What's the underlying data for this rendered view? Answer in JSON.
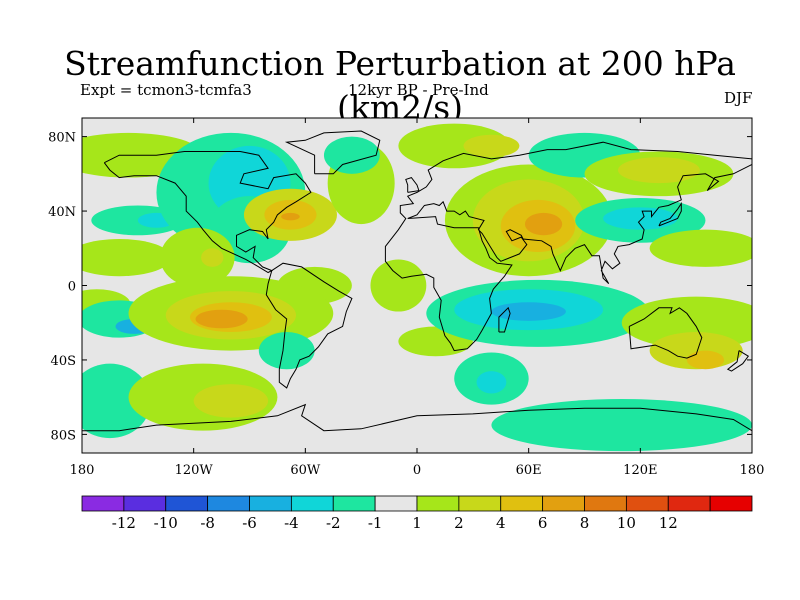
{
  "title": "Streamfunction Perturbation at 200 hPa (km2/s)",
  "experiment": "Expt = tcmon3-tcmfa3",
  "period": "12kyr BP - Pre-Ind",
  "season": "DJF",
  "map": {
    "projection": "cylindrical-equidistant",
    "lon_range": [
      -180,
      180
    ],
    "lat_range": [
      -90,
      90
    ],
    "background_color": "#e6e6e6",
    "lat_ticks": [
      {
        "value": 80,
        "label": "80N"
      },
      {
        "value": 40,
        "label": "40N"
      },
      {
        "value": 0,
        "label": "0"
      },
      {
        "value": -40,
        "label": "40S"
      },
      {
        "value": -80,
        "label": "80S"
      }
    ],
    "lon_ticks": [
      {
        "value": -180,
        "label": "180"
      },
      {
        "value": -120,
        "label": "120W"
      },
      {
        "value": -60,
        "label": "60W"
      },
      {
        "value": 0,
        "label": "0"
      },
      {
        "value": 60,
        "label": "60E"
      },
      {
        "value": 120,
        "label": "120E"
      },
      {
        "value": 180,
        "label": "180"
      }
    ]
  },
  "colorbar": {
    "colors": [
      "#8a2be2",
      "#5a2ee0",
      "#1f55d6",
      "#1e88e0",
      "#18b0e0",
      "#10d6d8",
      "#1ee6a0",
      "#e6e6e6",
      "#a6e61a",
      "#c8d81a",
      "#e0c010",
      "#e2a010",
      "#e07810",
      "#e05010",
      "#e02810",
      "#e60000"
    ],
    "labels": [
      "-12",
      "-10",
      "-8",
      "-6",
      "-4",
      "-2",
      "-1",
      "1",
      "2",
      "4",
      "6",
      "8",
      "10",
      "12"
    ]
  },
  "field_anomalies": [
    {
      "lon": -172,
      "lat": -10,
      "rx": 18,
      "ry": 8,
      "level": 1
    },
    {
      "lon": -160,
      "lat": -18,
      "rx": 22,
      "ry": 10,
      "level": -1
    },
    {
      "lon": -152,
      "lat": -22,
      "rx": 10,
      "ry": 4,
      "level": -4
    },
    {
      "lon": -165,
      "lat": -62,
      "rx": 22,
      "ry": 20,
      "level": -1
    },
    {
      "lon": -150,
      "lat": 35,
      "rx": 25,
      "ry": 8,
      "level": -1
    },
    {
      "lon": -140,
      "lat": 35,
      "rx": 10,
      "ry": 4,
      "level": -2
    },
    {
      "lon": -160,
      "lat": 15,
      "rx": 28,
      "ry": 10,
      "level": 1
    },
    {
      "lon": -155,
      "lat": 70,
      "rx": 40,
      "ry": 12,
      "level": 1
    },
    {
      "lon": -100,
      "lat": 50,
      "rx": 40,
      "ry": 32,
      "level": -1
    },
    {
      "lon": -90,
      "lat": 55,
      "rx": 22,
      "ry": 20,
      "level": -2
    },
    {
      "lon": -90,
      "lat": 30,
      "rx": 22,
      "ry": 18,
      "level": -1
    },
    {
      "lon": -68,
      "lat": 38,
      "rx": 25,
      "ry": 14,
      "level": 2
    },
    {
      "lon": -68,
      "lat": 38,
      "rx": 14,
      "ry": 8,
      "level": 4
    },
    {
      "lon": -68,
      "lat": 37,
      "rx": 5,
      "ry": 2,
      "level": 6
    },
    {
      "lon": -118,
      "lat": 15,
      "rx": 20,
      "ry": 16,
      "level": 1
    },
    {
      "lon": -110,
      "lat": 15,
      "rx": 6,
      "ry": 5,
      "level": 2
    },
    {
      "lon": -55,
      "lat": 0,
      "rx": 20,
      "ry": 10,
      "level": 1
    },
    {
      "lon": -100,
      "lat": -15,
      "rx": 55,
      "ry": 20,
      "level": 1
    },
    {
      "lon": -100,
      "lat": -16,
      "rx": 35,
      "ry": 13,
      "level": 2
    },
    {
      "lon": -100,
      "lat": -17,
      "rx": 22,
      "ry": 8,
      "level": 4
    },
    {
      "lon": -105,
      "lat": -18,
      "rx": 14,
      "ry": 5,
      "level": 6
    },
    {
      "lon": -70,
      "lat": -35,
      "rx": 15,
      "ry": 10,
      "level": -1
    },
    {
      "lon": -115,
      "lat": -60,
      "rx": 40,
      "ry": 18,
      "level": 1
    },
    {
      "lon": -100,
      "lat": -62,
      "rx": 20,
      "ry": 9,
      "level": 2
    },
    {
      "lon": -30,
      "lat": 55,
      "rx": 18,
      "ry": 22,
      "level": 1
    },
    {
      "lon": -35,
      "lat": 70,
      "rx": 15,
      "ry": 10,
      "level": -1
    },
    {
      "lon": -10,
      "lat": 0,
      "rx": 15,
      "ry": 14,
      "level": 1
    },
    {
      "lon": 10,
      "lat": -30,
      "rx": 20,
      "ry": 8,
      "level": 1
    },
    {
      "lon": 40,
      "lat": -50,
      "rx": 20,
      "ry": 14,
      "level": -1
    },
    {
      "lon": 40,
      "lat": -52,
      "rx": 8,
      "ry": 6,
      "level": -2
    },
    {
      "lon": 20,
      "lat": 75,
      "rx": 30,
      "ry": 12,
      "level": 1
    },
    {
      "lon": 40,
      "lat": 75,
      "rx": 15,
      "ry": 6,
      "level": 2
    },
    {
      "lon": 60,
      "lat": 35,
      "rx": 45,
      "ry": 30,
      "level": 1
    },
    {
      "lon": 60,
      "lat": 35,
      "rx": 30,
      "ry": 22,
      "level": 2
    },
    {
      "lon": 65,
      "lat": 32,
      "rx": 20,
      "ry": 14,
      "level": 4
    },
    {
      "lon": 68,
      "lat": 33,
      "rx": 10,
      "ry": 6,
      "level": 6
    },
    {
      "lon": 90,
      "lat": 70,
      "rx": 30,
      "ry": 12,
      "level": -1
    },
    {
      "lon": 130,
      "lat": 60,
      "rx": 40,
      "ry": 12,
      "level": 1
    },
    {
      "lon": 130,
      "lat": 62,
      "rx": 22,
      "ry": 7,
      "level": 2
    },
    {
      "lon": 120,
      "lat": 35,
      "rx": 35,
      "ry": 12,
      "level": -1
    },
    {
      "lon": 120,
      "lat": 36,
      "rx": 20,
      "ry": 6,
      "level": -2
    },
    {
      "lon": 65,
      "lat": -15,
      "rx": 60,
      "ry": 18,
      "level": -1
    },
    {
      "lon": 60,
      "lat": -13,
      "rx": 40,
      "ry": 11,
      "level": -2
    },
    {
      "lon": 60,
      "lat": -14,
      "rx": 20,
      "ry": 5,
      "level": -4
    },
    {
      "lon": 150,
      "lat": -20,
      "rx": 40,
      "ry": 14,
      "level": 1
    },
    {
      "lon": 155,
      "lat": 20,
      "rx": 30,
      "ry": 10,
      "level": 1
    },
    {
      "lon": 150,
      "lat": -35,
      "rx": 25,
      "ry": 10,
      "level": 2
    },
    {
      "lon": 155,
      "lat": -40,
      "rx": 10,
      "ry": 5,
      "level": 4
    },
    {
      "lon": 110,
      "lat": -75,
      "rx": 70,
      "ry": 14,
      "level": -1
    }
  ],
  "coastlines": [
    {
      "name": "north-america",
      "points": [
        [
          -168,
          66
        ],
        [
          -160,
          70
        ],
        [
          -140,
          70
        ],
        [
          -125,
          72
        ],
        [
          -95,
          72
        ],
        [
          -85,
          70
        ],
        [
          -80,
          63
        ],
        [
          -93,
          60
        ],
        [
          -95,
          55
        ],
        [
          -80,
          52
        ],
        [
          -77,
          58
        ],
        [
          -65,
          60
        ],
        [
          -60,
          55
        ],
        [
          -57,
          50
        ],
        [
          -65,
          45
        ],
        [
          -70,
          42
        ],
        [
          -75,
          38
        ],
        [
          -77,
          34
        ],
        [
          -81,
          30
        ],
        [
          -80,
          25
        ],
        [
          -83,
          29
        ],
        [
          -90,
          30
        ],
        [
          -97,
          27
        ],
        [
          -97,
          21
        ],
        [
          -92,
          18
        ],
        [
          -87,
          21
        ],
        [
          -88,
          15
        ],
        [
          -83,
          10
        ],
        [
          -78,
          8
        ],
        [
          -80,
          7
        ],
        [
          -85,
          10
        ],
        [
          -92,
          14
        ],
        [
          -105,
          20
        ],
        [
          -110,
          24
        ],
        [
          -115,
          30
        ],
        [
          -118,
          34
        ],
        [
          -124,
          40
        ],
        [
          -124,
          48
        ],
        [
          -130,
          55
        ],
        [
          -140,
          59
        ],
        [
          -152,
          59
        ],
        [
          -160,
          58
        ],
        [
          -165,
          62
        ],
        [
          -168,
          66
        ]
      ]
    },
    {
      "name": "greenland",
      "points": [
        [
          -55,
          60
        ],
        [
          -45,
          60
        ],
        [
          -40,
          65
        ],
        [
          -22,
          70
        ],
        [
          -20,
          78
        ],
        [
          -30,
          83
        ],
        [
          -50,
          82
        ],
        [
          -60,
          78
        ],
        [
          -70,
          77
        ],
        [
          -55,
          70
        ],
        [
          -55,
          60
        ]
      ]
    },
    {
      "name": "south-america",
      "points": [
        [
          -78,
          8
        ],
        [
          -72,
          12
        ],
        [
          -62,
          10
        ],
        [
          -50,
          2
        ],
        [
          -42,
          -3
        ],
        [
          -35,
          -7
        ],
        [
          -38,
          -14
        ],
        [
          -40,
          -22
        ],
        [
          -48,
          -26
        ],
        [
          -53,
          -33
        ],
        [
          -58,
          -38
        ],
        [
          -63,
          -40
        ],
        [
          -65,
          -45
        ],
        [
          -68,
          -50
        ],
        [
          -70,
          -55
        ],
        [
          -74,
          -52
        ],
        [
          -74,
          -45
        ],
        [
          -72,
          -35
        ],
        [
          -71,
          -25
        ],
        [
          -70,
          -18
        ],
        [
          -76,
          -13
        ],
        [
          -81,
          -5
        ],
        [
          -80,
          1
        ],
        [
          -78,
          8
        ]
      ]
    },
    {
      "name": "africa-eurasia",
      "points": [
        [
          -17,
          15
        ],
        [
          -17,
          21
        ],
        [
          -10,
          30
        ],
        [
          -6,
          36
        ],
        [
          -9,
          39
        ],
        [
          -9,
          43
        ],
        [
          -2,
          44
        ],
        [
          -5,
          48
        ],
        [
          0,
          50
        ],
        [
          5,
          53
        ],
        [
          8,
          57
        ],
        [
          6,
          62
        ],
        [
          14,
          67
        ],
        [
          25,
          71
        ],
        [
          40,
          68
        ],
        [
          55,
          70
        ],
        [
          70,
          73
        ],
        [
          80,
          73
        ],
        [
          100,
          77
        ],
        [
          115,
          73
        ],
        [
          140,
          72
        ],
        [
          160,
          70
        ],
        [
          180,
          68
        ],
        [
          180,
          65
        ],
        [
          170,
          60
        ],
        [
          160,
          58
        ],
        [
          156,
          51
        ],
        [
          162,
          56
        ],
        [
          155,
          60
        ],
        [
          143,
          59
        ],
        [
          140,
          53
        ],
        [
          142,
          46
        ],
        [
          135,
          43
        ],
        [
          130,
          42
        ],
        [
          126,
          37
        ],
        [
          126,
          40
        ],
        [
          121,
          40
        ],
        [
          122,
          37
        ],
        [
          119,
          34
        ],
        [
          122,
          30
        ],
        [
          121,
          25
        ],
        [
          114,
          22
        ],
        [
          108,
          21
        ],
        [
          106,
          17
        ],
        [
          109,
          12
        ],
        [
          105,
          9
        ],
        [
          101,
          13
        ],
        [
          99,
          8
        ],
        [
          103,
          1
        ],
        [
          100,
          4
        ],
        [
          98,
          16
        ],
        [
          94,
          16
        ],
        [
          90,
          22
        ],
        [
          85,
          20
        ],
        [
          80,
          15
        ],
        [
          77,
          8
        ],
        [
          73,
          17
        ],
        [
          72,
          21
        ],
        [
          67,
          24
        ],
        [
          57,
          25
        ],
        [
          56,
          27
        ],
        [
          50,
          30
        ],
        [
          48,
          29
        ],
        [
          51,
          24
        ],
        [
          56,
          26
        ],
        [
          59,
          22
        ],
        [
          55,
          17
        ],
        [
          45,
          13
        ],
        [
          43,
          15
        ],
        [
          35,
          28
        ],
        [
          33,
          30
        ],
        [
          36,
          35
        ],
        [
          28,
          37
        ],
        [
          26,
          40
        ],
        [
          23,
          38
        ],
        [
          20,
          40
        ],
        [
          16,
          40
        ],
        [
          14,
          45
        ],
        [
          12,
          43
        ],
        [
          9,
          44
        ],
        [
          4,
          43
        ],
        [
          0,
          38
        ],
        [
          -5,
          36
        ],
        [
          10,
          37
        ],
        [
          11,
          33
        ],
        [
          20,
          31
        ],
        [
          30,
          31
        ],
        [
          33,
          31
        ],
        [
          35,
          24
        ],
        [
          37,
          20
        ],
        [
          39,
          15
        ],
        [
          43,
          12
        ],
        [
          51,
          11
        ],
        [
          47,
          5
        ],
        [
          41,
          -2
        ],
        [
          39,
          -7
        ],
        [
          40,
          -15
        ],
        [
          35,
          -24
        ],
        [
          32,
          -29
        ],
        [
          27,
          -34
        ],
        [
          20,
          -35
        ],
        [
          18,
          -31
        ],
        [
          15,
          -27
        ],
        [
          12,
          -17
        ],
        [
          13,
          -8
        ],
        [
          9,
          -1
        ],
        [
          9,
          4
        ],
        [
          5,
          6
        ],
        [
          -3,
          5
        ],
        [
          -8,
          4
        ],
        [
          -13,
          8
        ],
        [
          -17,
          13
        ],
        [
          -17,
          15
        ]
      ]
    },
    {
      "name": "madagascar",
      "points": [
        [
          44,
          -25
        ],
        [
          47,
          -25
        ],
        [
          50,
          -15
        ],
        [
          49,
          -12
        ],
        [
          44,
          -17
        ],
        [
          44,
          -25
        ]
      ]
    },
    {
      "name": "australia",
      "points": [
        [
          114,
          -22
        ],
        [
          122,
          -18
        ],
        [
          130,
          -12
        ],
        [
          137,
          -12
        ],
        [
          136,
          -15
        ],
        [
          141,
          -12
        ],
        [
          145,
          -15
        ],
        [
          150,
          -22
        ],
        [
          153,
          -28
        ],
        [
          150,
          -37
        ],
        [
          145,
          -39
        ],
        [
          140,
          -38
        ],
        [
          135,
          -35
        ],
        [
          128,
          -32
        ],
        [
          115,
          -34
        ],
        [
          114,
          -22
        ]
      ]
    },
    {
      "name": "antarctica",
      "points": [
        [
          -180,
          -78
        ],
        [
          -160,
          -78
        ],
        [
          -140,
          -75
        ],
        [
          -100,
          -73
        ],
        [
          -75,
          -70
        ],
        [
          -60,
          -64
        ],
        [
          -62,
          -70
        ],
        [
          -50,
          -78
        ],
        [
          -30,
          -77
        ],
        [
          0,
          -70
        ],
        [
          30,
          -69
        ],
        [
          60,
          -67
        ],
        [
          90,
          -66
        ],
        [
          120,
          -66
        ],
        [
          150,
          -69
        ],
        [
          170,
          -72
        ],
        [
          180,
          -78
        ]
      ]
    },
    {
      "name": "british-isles",
      "points": [
        [
          -5,
          50
        ],
        [
          1,
          51
        ],
        [
          0,
          54
        ],
        [
          -3,
          58
        ],
        [
          -6,
          57
        ],
        [
          -5,
          54
        ],
        [
          -5,
          50
        ]
      ]
    },
    {
      "name": "japan",
      "points": [
        [
          130,
          32
        ],
        [
          135,
          34
        ],
        [
          140,
          36
        ],
        [
          142,
          40
        ],
        [
          142,
          44
        ],
        [
          140,
          41
        ],
        [
          136,
          36
        ],
        [
          131,
          34
        ],
        [
          130,
          32
        ]
      ]
    },
    {
      "name": "new-zealand",
      "points": [
        [
          173,
          -35
        ],
        [
          178,
          -38
        ],
        [
          175,
          -42
        ],
        [
          169,
          -46
        ],
        [
          167,
          -45
        ],
        [
          172,
          -41
        ],
        [
          173,
          -35
        ]
      ]
    }
  ]
}
